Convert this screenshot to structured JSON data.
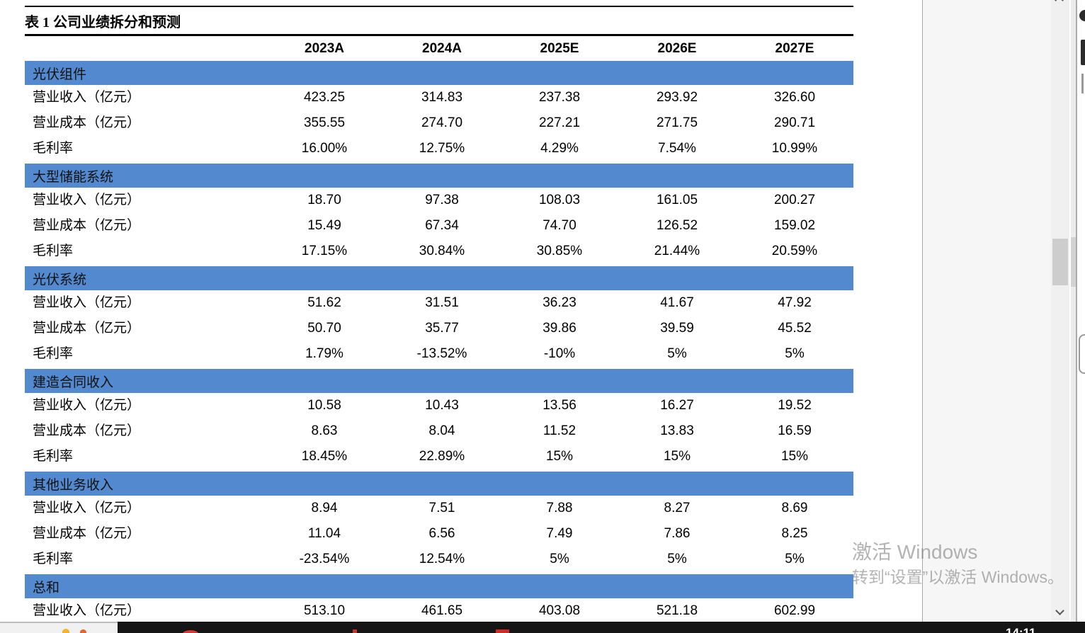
{
  "document": {
    "accent_color": "#5289cf",
    "table": {
      "title": "表 1 公司业绩拆分和预测",
      "columns": [
        "2023A",
        "2024A",
        "2025E",
        "2026E",
        "2027E"
      ],
      "row_labels": {
        "revenue": "营业收入（亿元）",
        "cost": "营业成本（亿元）",
        "margin": "毛利率"
      },
      "sections": [
        {
          "name": "光伏组件",
          "revenue": [
            "423.25",
            "314.83",
            "237.38",
            "293.92",
            "326.60"
          ],
          "cost": [
            "355.55",
            "274.70",
            "227.21",
            "271.75",
            "290.71"
          ],
          "margin": [
            "16.00%",
            "12.75%",
            "4.29%",
            "7.54%",
            "10.99%"
          ]
        },
        {
          "name": "大型储能系统",
          "revenue": [
            "18.70",
            "97.38",
            "108.03",
            "161.05",
            "200.27"
          ],
          "cost": [
            "15.49",
            "67.34",
            "74.70",
            "126.52",
            "159.02"
          ],
          "margin": [
            "17.15%",
            "30.84%",
            "30.85%",
            "21.44%",
            "20.59%"
          ]
        },
        {
          "name": "光伏系统",
          "revenue": [
            "51.62",
            "31.51",
            "36.23",
            "41.67",
            "47.92"
          ],
          "cost": [
            "50.70",
            "35.77",
            "39.86",
            "39.59",
            "45.52"
          ],
          "margin": [
            "1.79%",
            "-13.52%",
            "-10%",
            "5%",
            "5%"
          ]
        },
        {
          "name": "建造合同收入",
          "revenue": [
            "10.58",
            "10.43",
            "13.56",
            "16.27",
            "19.52"
          ],
          "cost": [
            "8.63",
            "8.04",
            "11.52",
            "13.83",
            "16.59"
          ],
          "margin": [
            "18.45%",
            "22.89%",
            "15%",
            "15%",
            "15%"
          ]
        },
        {
          "name": "其他业务收入",
          "revenue": [
            "8.94",
            "7.51",
            "7.88",
            "8.27",
            "8.69"
          ],
          "cost": [
            "11.04",
            "6.56",
            "7.49",
            "7.86",
            "8.25"
          ],
          "margin": [
            "-23.54%",
            "12.54%",
            "5%",
            "5%",
            "5%"
          ]
        }
      ],
      "total": {
        "name": "总和",
        "revenue": [
          "513.10",
          "461.65",
          "403.08",
          "521.18",
          "602.99"
        ]
      }
    }
  },
  "os": {
    "watermark": {
      "line1": "激活 Windows",
      "line2": "转到“设置”以激活 Windows。"
    },
    "taskbar": {
      "clock": "14:11"
    }
  }
}
